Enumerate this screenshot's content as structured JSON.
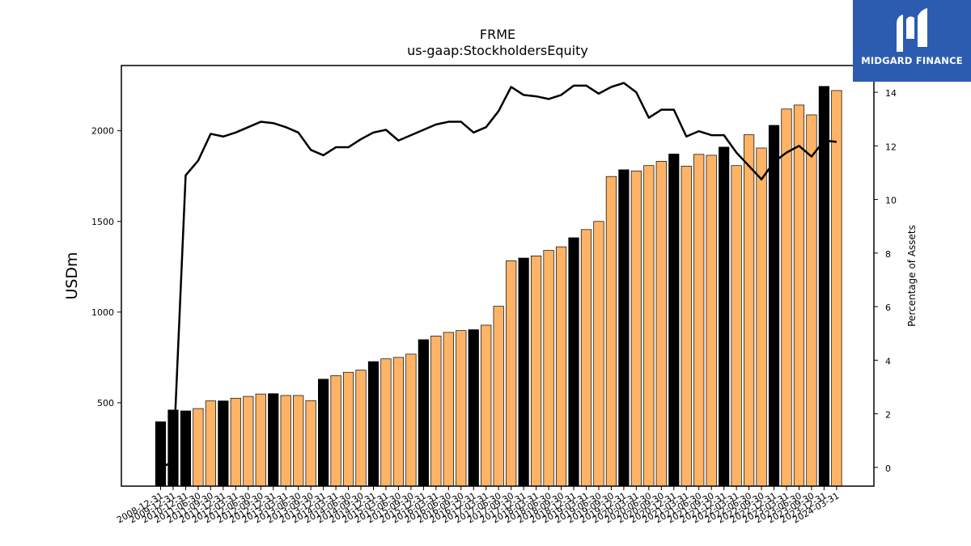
{
  "chart_data": {
    "type": "bar",
    "title": "FRME",
    "subtitle": "us-gaap:StockholdersEquity",
    "ylabel": "USDm",
    "ylabel_right": "Percentage of Assets",
    "ylim": [
      40,
      2360
    ],
    "ylim_right": [
      -0.7,
      15
    ],
    "yticks": [
      500,
      1000,
      1500,
      2000
    ],
    "yticks_right": [
      0,
      2,
      4,
      6,
      8,
      10,
      12,
      14
    ],
    "x_tick_labels": [
      "2008-12-31",
      "2009-12-31",
      "2010-12-31",
      "2011-06-30",
      "2011-09-30",
      "2011-12-31",
      "2012-03-31",
      "2012-06-30",
      "2012-09-30",
      "2012-12-31",
      "2013-03-31",
      "2013-06-30",
      "2013-09-30",
      "2013-12-31",
      "2014-03-31",
      "2014-06-30",
      "2014-09-30",
      "2014-12-31",
      "2015-03-31",
      "2015-06-30",
      "2015-09-30",
      "2015-12-31",
      "2016-03-31",
      "2016-06-30",
      "2016-09-30",
      "2016-12-31",
      "2017-03-31",
      "2017-06-30",
      "2017-09-30",
      "2017-12-31",
      "2018-03-31",
      "2018-06-30",
      "2018-09-30",
      "2018-12-31",
      "2019-03-31",
      "2019-06-30",
      "2019-09-30",
      "2019-12-31",
      "2020-03-31",
      "2020-06-30",
      "2020-09-30",
      "2020-12-31",
      "2021-03-31",
      "2021-06-30",
      "2021-09-30",
      "2021-12-31",
      "2022-03-31",
      "2022-06-30",
      "2022-09-30",
      "2022-12-31",
      "2023-03-31",
      "2023-06-30",
      "2023-09-30",
      "2023-12-31",
      "2024-03-31"
    ],
    "values": [
      395,
      460,
      455,
      468,
      510,
      510,
      525,
      535,
      548,
      550,
      540,
      540,
      512,
      630,
      650,
      668,
      680,
      727,
      742,
      750,
      768,
      848,
      868,
      888,
      898,
      903,
      928,
      1032,
      1283,
      1298,
      1310,
      1340,
      1360,
      1410,
      1455,
      1500,
      1748,
      1785,
      1778,
      1808,
      1832,
      1872,
      1805,
      1870,
      1865,
      1910,
      1808,
      1978,
      1905,
      2030,
      2120,
      2142,
      2088,
      2245,
      2222
    ],
    "bar_highlight": [
      true,
      true,
      true,
      false,
      false,
      true,
      false,
      false,
      false,
      true,
      false,
      false,
      false,
      true,
      false,
      false,
      false,
      true,
      false,
      false,
      false,
      true,
      false,
      false,
      false,
      true,
      false,
      false,
      false,
      true,
      false,
      false,
      false,
      true,
      false,
      false,
      false,
      true,
      false,
      false,
      false,
      true,
      false,
      false,
      false,
      true,
      false,
      false,
      false,
      true,
      false,
      false,
      false,
      true,
      false
    ],
    "series": [
      {
        "values_right": [
          0.0,
          0.2,
          10.9,
          11.45,
          12.45,
          12.35,
          12.5,
          12.7,
          12.9,
          12.85,
          12.7,
          12.5,
          11.85,
          11.65,
          11.95,
          11.95,
          12.25,
          12.5,
          12.6,
          12.2,
          12.4,
          12.6,
          12.8,
          12.9,
          12.9,
          12.5,
          12.7,
          13.3,
          14.2,
          13.9,
          13.85,
          13.75,
          13.9,
          14.25,
          14.25,
          13.95,
          14.2,
          14.35,
          14.0,
          13.05,
          13.35,
          13.35,
          12.35,
          12.55,
          12.4,
          12.4,
          11.75,
          11.25,
          10.75,
          11.4,
          11.75,
          12.0,
          11.6,
          12.2,
          12.15
        ]
      }
    ],
    "colors": {
      "bar_normal": "#ffb366",
      "bar_highlight": "#000000",
      "line": "#000000"
    }
  },
  "logo": {
    "text": "MIDGARD FINANCE"
  }
}
